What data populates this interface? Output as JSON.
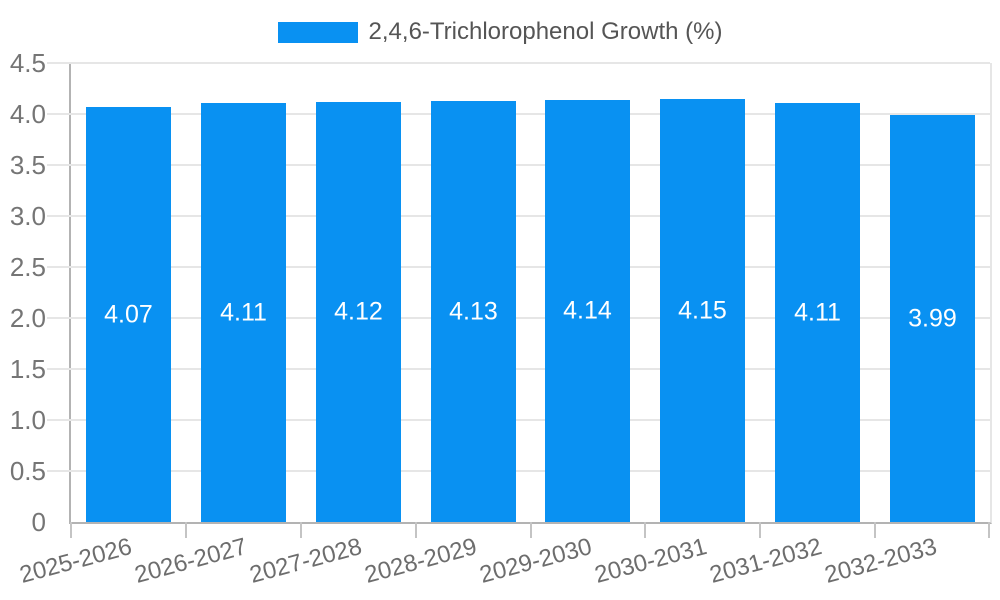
{
  "chart_data": {
    "type": "bar",
    "title": "",
    "legend": {
      "label": "2,4,6-Trichlorophenol Growth (%)",
      "position": "top"
    },
    "categories": [
      "2025-2026",
      "2026-2027",
      "2027-2028",
      "2028-2029",
      "2029-2030",
      "2030-2031",
      "2031-2032",
      "2032-2033"
    ],
    "series": [
      {
        "name": "2,4,6-Trichlorophenol Growth (%)",
        "values": [
          4.07,
          4.11,
          4.12,
          4.13,
          4.14,
          4.15,
          4.11,
          3.99
        ]
      }
    ],
    "value_labels": [
      "4.07",
      "4.11",
      "4.12",
      "4.13",
      "4.14",
      "4.15",
      "4.11",
      "3.99"
    ],
    "xlabel": "",
    "ylabel": "",
    "ylim": [
      0,
      4.5
    ],
    "y_ticks": [
      {
        "value": 0,
        "label": "0"
      },
      {
        "value": 0.5,
        "label": "0.5"
      },
      {
        "value": 1,
        "label": "1.0"
      },
      {
        "value": 1.5,
        "label": "1.5"
      },
      {
        "value": 2,
        "label": "2.0"
      },
      {
        "value": 2.5,
        "label": "2.5"
      },
      {
        "value": 3,
        "label": "3.0"
      },
      {
        "value": 3.5,
        "label": "3.5"
      },
      {
        "value": 4,
        "label": "4.0"
      },
      {
        "value": 4.5,
        "label": "4.5"
      }
    ],
    "grid": true,
    "colors": {
      "bar": "#0991f2",
      "gridline": "#e6e6e6",
      "axis": "#b3b3b3",
      "y_label": "#757575",
      "x_label": "#6d6d6d",
      "bar_label": "#ffffff",
      "legend_text": "#555555"
    }
  }
}
